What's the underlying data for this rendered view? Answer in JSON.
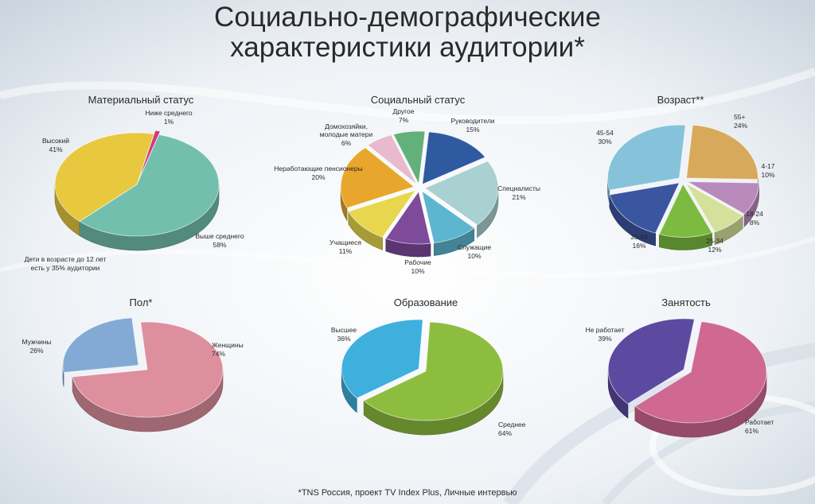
{
  "title_line1": "Социально-демографические",
  "title_line2": "характеристики аудитории*",
  "note": "Дети в возрасте до 12 лет есть у 35% аудитории",
  "footer": "*TNS Россия, проект TV Index Plus, Личные интервью",
  "chart_data": [
    {
      "type": "pie",
      "title": "Материальный статус",
      "categories": [
        "Ниже среднего",
        "Выше среднего",
        "Высокий"
      ],
      "values": [
        1,
        58,
        41
      ],
      "colors": [
        "#d23a7a",
        "#72bfae",
        "#e7c83e"
      ]
    },
    {
      "type": "pie",
      "title": "Социальный статус",
      "categories": [
        "Руководители",
        "Специалисты",
        "Служащие",
        "Рабочие",
        "Учащиеся",
        "Неработающие пенсионеры",
        "Домохозяйки, молодые матери",
        "Другое"
      ],
      "values": [
        15,
        21,
        10,
        10,
        11,
        20,
        6,
        7
      ],
      "colors": [
        "#2f5aa0",
        "#a9d1d1",
        "#5cb6cf",
        "#7e4a9a",
        "#e8d64e",
        "#e8a72c",
        "#e9b9cc",
        "#64b07a"
      ]
    },
    {
      "type": "pie",
      "title": "Возраст**",
      "categories": [
        "55+",
        "4-17",
        "18-24",
        "25-34",
        "35-44",
        "45-54"
      ],
      "values": [
        24,
        10,
        8,
        12,
        16,
        30
      ],
      "colors": [
        "#d8a95a",
        "#b98bbd",
        "#d5e09a",
        "#7cbb3f",
        "#3a56a0",
        "#86c3da"
      ]
    },
    {
      "type": "pie",
      "title": "Пол*",
      "categories": [
        "Женщины",
        "Мужчины"
      ],
      "values": [
        74,
        26
      ],
      "colors": [
        "#dd8f9e",
        "#83aad4"
      ]
    },
    {
      "type": "pie",
      "title": "Образование",
      "categories": [
        "Среднее",
        "Высшее"
      ],
      "values": [
        64,
        36
      ],
      "colors": [
        "#8dbd3f",
        "#3fb0dd"
      ]
    },
    {
      "type": "pie",
      "title": "Занятость",
      "categories": [
        "Работает",
        "Не работает"
      ],
      "values": [
        61,
        39
      ],
      "colors": [
        "#d06894",
        "#5b4aa0"
      ]
    }
  ]
}
